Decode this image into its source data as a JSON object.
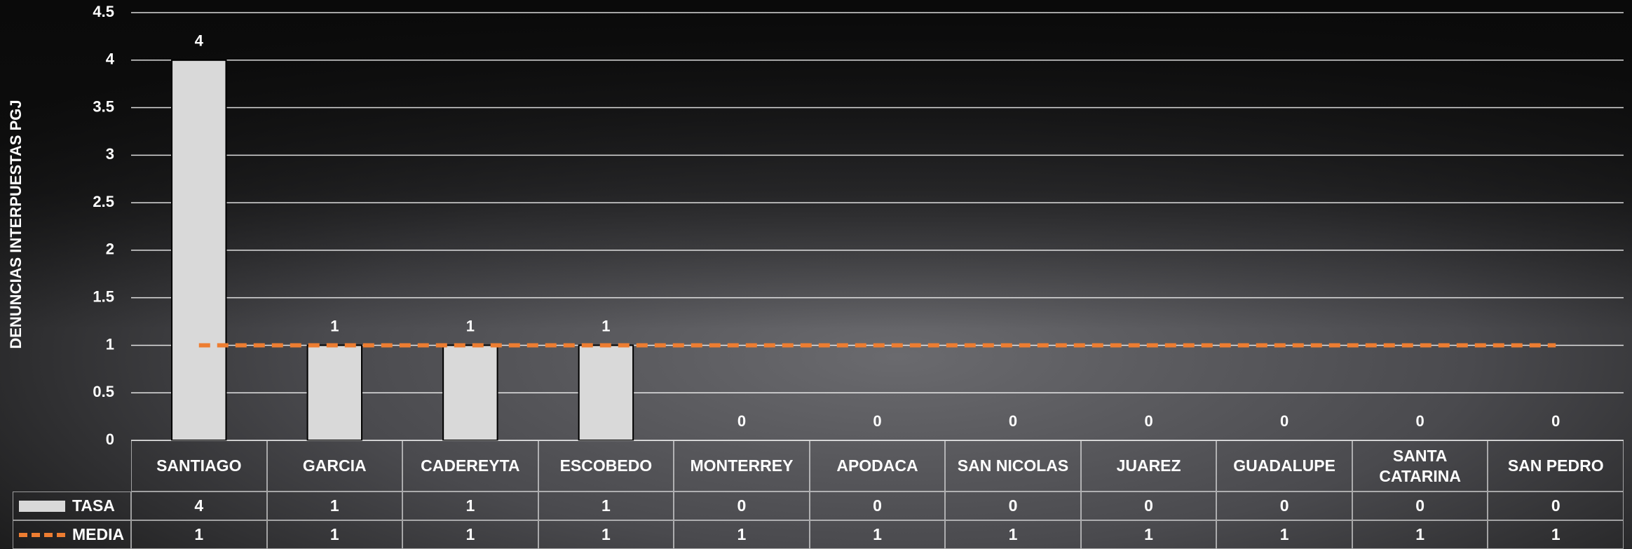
{
  "chart_data": {
    "type": "bar",
    "y_label": "DENUNCIAS INTERPUESTAS PGJ",
    "categories": [
      "SANTIAGO",
      "GARCIA",
      "CADEREYTA",
      "ESCOBEDO",
      "MONTERREY",
      "APODACA",
      "SAN NICOLAS",
      "JUAREZ",
      "GUADALUPE",
      "SANTA CATARINA",
      "SAN PEDRO"
    ],
    "series": [
      {
        "name": "TASA",
        "type": "bar",
        "color": "#d9d9d9",
        "values": [
          4,
          1,
          1,
          1,
          0,
          0,
          0,
          0,
          0,
          0,
          0
        ]
      },
      {
        "name": "MEDIA",
        "type": "line",
        "color": "#ed7d31",
        "dashed": true,
        "values": [
          1,
          1,
          1,
          1,
          1,
          1,
          1,
          1,
          1,
          1,
          1
        ]
      }
    ],
    "ylim": [
      0,
      4.5
    ],
    "yticks": [
      0,
      0.5,
      1,
      1.5,
      2,
      2.5,
      3,
      3.5,
      4,
      4.5
    ],
    "grid": true,
    "data_labels": true,
    "data_table": true
  }
}
